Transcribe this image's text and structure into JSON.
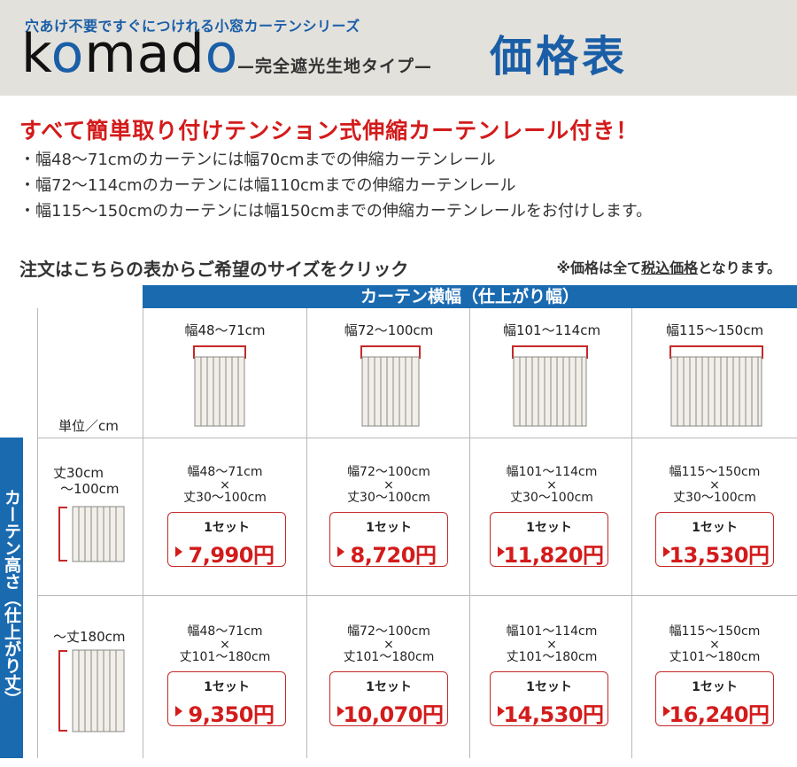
{
  "header": {
    "series_label": "穴あけ不要ですぐにつけれる小窓カーテンシリーズ",
    "brand_k": "k",
    "brand_o1": "o",
    "brand_m": "m",
    "brand_a": "a",
    "brand_d": "d",
    "brand_o2": "o",
    "subtitle": "—完全遮光生地タイプ—",
    "title": "価格表"
  },
  "notice": {
    "headline": "すべて簡単取り付けテンション式伸縮カーテンレール付き！",
    "bullets": [
      "・幅48〜71cmのカーテンには幅70cmまでの伸縮カーテンレール",
      "・幅72〜114cmのカーテンには幅110cmまでの伸縮カーテンレール",
      "・幅115〜150cmのカーテンには幅150cmまでの伸縮カーテンレールをお付けします。"
    ]
  },
  "table": {
    "instruction": "注文はこちらの表からご希望のサイズをクリック",
    "tax_note_pre": "※価格は全て",
    "tax_note_underlined": "税込価格",
    "tax_note_post": "となります。",
    "width_header": "カーテン横幅（仕上がり幅）",
    "height_header": "カーテン高さ（仕上がり丈）",
    "unit": "単位／cm",
    "columns": [
      "幅48〜71cm",
      "幅72〜100cm",
      "幅101〜114cm",
      "幅115〜150cm"
    ],
    "rows": [
      {
        "label_line1": "丈30cm",
        "label_line2": "〜100cm",
        "cells": [
          {
            "width": "幅48〜71cm",
            "times": "×",
            "height": "丈30〜100cm",
            "set": "1セット",
            "price": "7,990円"
          },
          {
            "width": "幅72〜100cm",
            "times": "×",
            "height": "丈30〜100cm",
            "set": "1セット",
            "price": "8,720円"
          },
          {
            "width": "幅101〜114cm",
            "times": "×",
            "height": "丈30〜100cm",
            "set": "1セット",
            "price": "11,820円"
          },
          {
            "width": "幅115〜150cm",
            "times": "×",
            "height": "丈30〜100cm",
            "set": "1セット",
            "price": "13,530円"
          }
        ]
      },
      {
        "label_line1": "〜丈180cm",
        "label_line2": "",
        "cells": [
          {
            "width": "幅48〜71cm",
            "times": "×",
            "height": "丈101〜180cm",
            "set": "1セット",
            "price": "9,350円"
          },
          {
            "width": "幅72〜100cm",
            "times": "×",
            "height": "丈101〜180cm",
            "set": "1セット",
            "price": "10,070円"
          },
          {
            "width": "幅101〜114cm",
            "times": "×",
            "height": "丈101〜180cm",
            "set": "1セット",
            "price": "14,530円"
          },
          {
            "width": "幅115〜150cm",
            "times": "×",
            "height": "丈101〜180cm",
            "set": "1セット",
            "price": "16,240円"
          }
        ]
      }
    ]
  },
  "colors": {
    "brand_blue": "#1a6ab0",
    "accent_red": "#d31b1b",
    "header_bg": "#e3e1dc"
  }
}
